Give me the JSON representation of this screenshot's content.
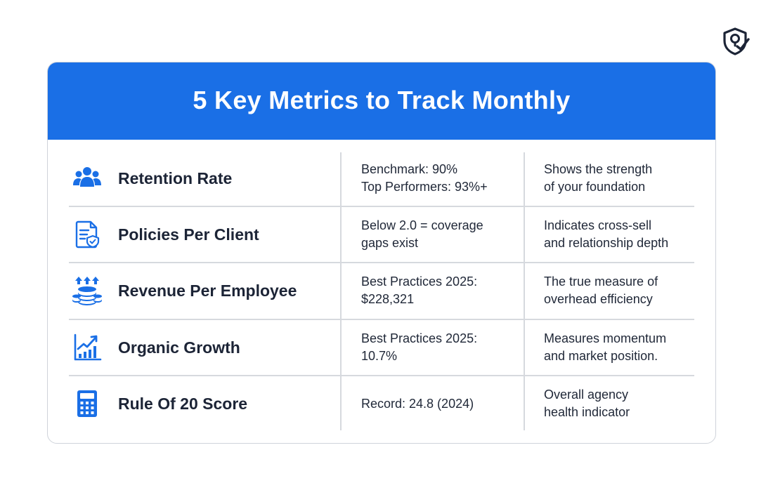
{
  "header": {
    "title": "5 Key Metrics to Track Monthly"
  },
  "logo": {
    "icon": "shield-check-pin-icon",
    "color": "#1c2436"
  },
  "colors": {
    "accent": "#1a6fe6",
    "text": "#1c2436",
    "divider": "#d6d9de"
  },
  "metrics": [
    {
      "icon": "users-group-icon",
      "name": "Retention Rate",
      "benchmark": [
        "Benchmark: 90%",
        "Top Performers: 93%+"
      ],
      "description": [
        "Shows the strength",
        "of your foundation"
      ]
    },
    {
      "icon": "policy-document-icon",
      "name": "Policies Per Client",
      "benchmark": [
        "Below 2.0 = coverage",
        "gaps exist"
      ],
      "description": [
        "Indicates cross-sell",
        "and relationship depth"
      ]
    },
    {
      "icon": "coins-stack-arrows-icon",
      "name": "Revenue Per Employee",
      "benchmark": [
        "Best Practices 2025:",
        "$228,321"
      ],
      "description": [
        "The true measure of",
        "overhead efficiency"
      ]
    },
    {
      "icon": "growth-chart-icon",
      "name": "Organic Growth",
      "benchmark": [
        "Best Practices 2025:",
        "10.7%"
      ],
      "description": [
        "Measures momentum",
        "and market position."
      ]
    },
    {
      "icon": "calculator-icon",
      "name": "Rule Of 20 Score",
      "benchmark": [
        "Record: 24.8 (2024)"
      ],
      "description": [
        "Overall agency",
        "health indicator"
      ]
    }
  ]
}
